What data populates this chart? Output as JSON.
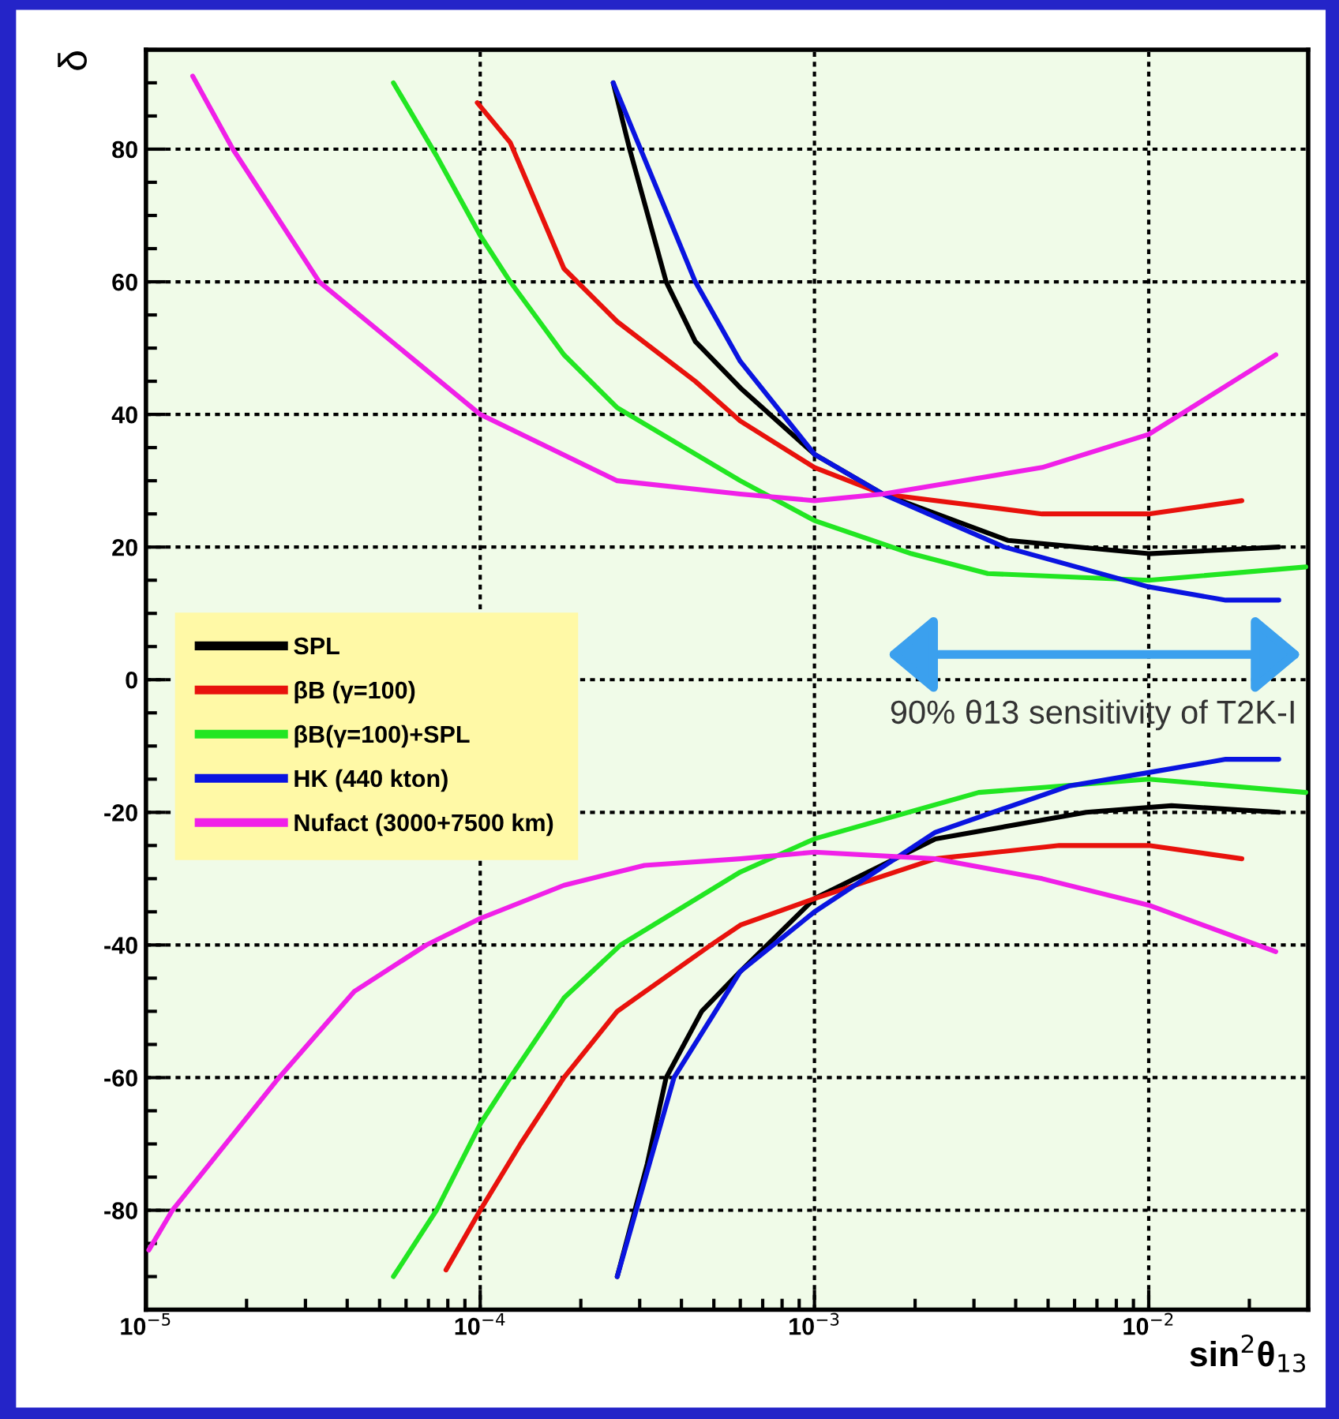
{
  "chart_data": {
    "type": "line",
    "xlabel": "sin$^{2}$θ$_{13}$",
    "ylabel": "δ",
    "log": "x",
    "xlim": [
      1e-05,
      0.03
    ],
    "ylim": [
      -95,
      95
    ],
    "xticks": [
      {
        "value": 1e-05,
        "label": "10$^{−5}$"
      },
      {
        "value": 0.0001,
        "label": "10$^{−4}$"
      },
      {
        "value": 0.001,
        "label": "10$^{−3}$"
      },
      {
        "value": 0.01,
        "label": "10$^{−2}$"
      }
    ],
    "yticks": [
      -80,
      -60,
      -40,
      -20,
      0,
      20,
      40,
      60,
      80
    ],
    "grid": true,
    "legend": "left",
    "line_style": "solid",
    "marker": "none",
    "series": [
      {
        "name": "SPL",
        "color": "#000000",
        "x": [
          0.00025,
          0.00028,
          0.00036,
          0.00044,
          0.0006,
          0.001,
          0.0016,
          0.0038,
          0.01,
          0.0245
        ],
        "values": [
          90,
          80,
          60,
          51,
          44,
          34,
          28,
          21,
          19,
          20
        ]
      },
      {
        "color": "#000000",
        "x": [
          0.000257,
          0.000316,
          0.00036,
          0.00046,
          0.0006,
          0.001,
          0.0023,
          0.0065,
          0.0117,
          0.0245
        ],
        "values": [
          -90,
          -73,
          -60,
          -50,
          -44,
          -33,
          -24,
          -20,
          -19,
          -20
        ]
      },
      {
        "name": "βB (γ=100)",
        "color": "#e8120c",
        "x": [
          9.8e-05,
          0.000123,
          0.000178,
          0.000257,
          0.00044,
          0.0006,
          0.001,
          0.0016,
          0.0048,
          0.01,
          0.019
        ],
        "values": [
          87,
          81,
          62,
          54,
          45,
          39,
          32,
          28,
          25,
          25,
          27
        ]
      },
      {
        "color": "#e8120c",
        "x": [
          7.9e-05,
          0.0001,
          0.000132,
          0.000178,
          0.000257,
          0.00049,
          0.0006,
          0.001,
          0.0023,
          0.0054,
          0.01,
          0.019
        ],
        "values": [
          -89,
          -80,
          -70,
          -60,
          -50,
          -40,
          -37,
          -33,
          -27,
          -25,
          -25,
          -27
        ]
      },
      {
        "name": "βB(γ=100)+SPL",
        "color": "#22e622",
        "x": [
          5.5e-05,
          7.4e-05,
          0.0001,
          0.000123,
          0.000178,
          0.000257,
          0.0006,
          0.001,
          0.00195,
          0.0033,
          0.01,
          0.0295
        ],
        "values": [
          90,
          79,
          67,
          60,
          49,
          41,
          30,
          24,
          19,
          16,
          15,
          17
        ]
      },
      {
        "color": "#22e622",
        "x": [
          5.5e-05,
          7.4e-05,
          0.0001,
          0.000123,
          0.000178,
          0.000263,
          0.0006,
          0.001,
          0.0031,
          0.01,
          0.0295
        ],
        "values": [
          -90,
          -80,
          -67,
          -60,
          -48,
          -40,
          -29,
          -24,
          -17,
          -15,
          -17
        ]
      },
      {
        "name": "HK (440 kton)",
        "color": "#0a14e0",
        "x": [
          0.00025,
          0.00044,
          0.0006,
          0.001,
          0.0016,
          0.0037,
          0.01,
          0.017,
          0.0245
        ],
        "values": [
          90,
          60,
          48,
          34,
          28,
          20,
          14,
          12,
          12
        ]
      },
      {
        "color": "#0a14e0",
        "x": [
          0.000257,
          0.00038,
          0.0006,
          0.001,
          0.0023,
          0.0058,
          0.01,
          0.017,
          0.0245
        ],
        "values": [
          -90,
          -60,
          -44,
          -35,
          -23,
          -16,
          -14,
          -12,
          -12
        ]
      },
      {
        "name": "Nufact (3000+7500 km)",
        "color": "#f020e8",
        "x": [
          1.38e-05,
          1.82e-05,
          3.3e-05,
          0.0001,
          0.000257,
          0.0006,
          0.001,
          0.0016,
          0.0048,
          0.01,
          0.024
        ],
        "values": [
          91,
          80,
          60,
          40,
          30,
          28,
          27,
          28,
          32,
          37,
          49
        ]
      },
      {
        "color": "#f020e8",
        "x": [
          1.02e-05,
          1.2e-05,
          2.5e-05,
          4.2e-05,
          6.9e-05,
          0.0001,
          0.000178,
          0.00031,
          0.0006,
          0.001,
          0.0023,
          0.0048,
          0.01,
          0.024
        ],
        "values": [
          -86,
          -80,
          -60,
          -47,
          -40,
          -36,
          -31,
          -28,
          -27,
          -26,
          -27,
          -30,
          -34,
          -41
        ]
      }
    ],
    "annotations": [
      "90% θ13 sensitivity of T2K-I"
    ]
  }
}
